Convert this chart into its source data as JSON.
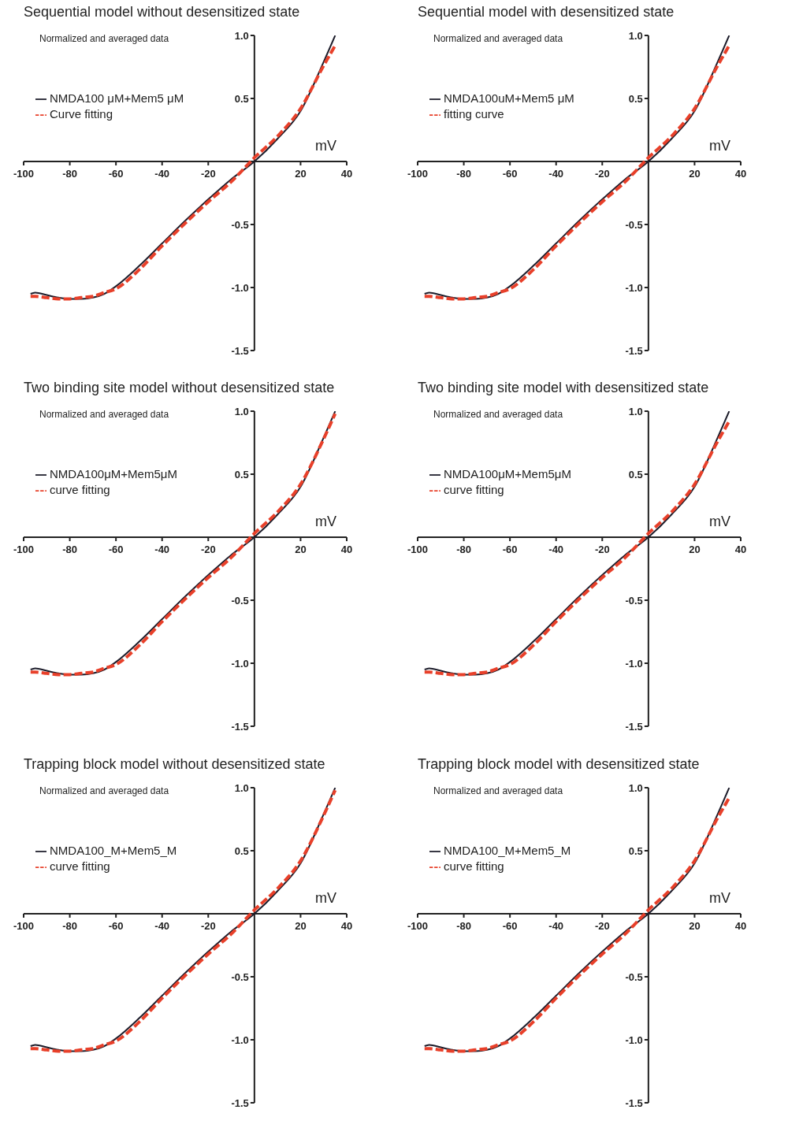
{
  "chart_data": [
    {
      "type": "line",
      "title": "Sequential model without desensitized state",
      "xlabel": "mV",
      "annotations": [
        "Normalized and averaged data"
      ],
      "x": [
        -97,
        -95,
        -90,
        -85,
        -80,
        -75,
        -70,
        -65,
        -60,
        -50,
        -40,
        -30,
        -20,
        -10,
        0,
        10,
        20,
        30,
        35
      ],
      "xlim": [
        -100,
        40
      ],
      "xticks": [
        -100,
        -80,
        -60,
        -40,
        -20,
        20,
        40
      ],
      "ylim": [
        -1.5,
        1.0
      ],
      "yticks": [
        {
          "value": -1.5,
          "label": "-1.5"
        },
        {
          "value": -1.0,
          "label": "-1.0"
        },
        {
          "value": -0.5,
          "label": "-0.5"
        },
        {
          "value": 0.5,
          "label": "0.5"
        },
        {
          "value": 1.0,
          "label": "1.0"
        }
      ],
      "legend": "top left",
      "series": [
        {
          "name": "NMDA100 μM+Mem5 μM",
          "color": "#1c1c2a",
          "line_style": "solid",
          "values": [
            -1.05,
            -1.04,
            -1.06,
            -1.08,
            -1.09,
            -1.09,
            -1.08,
            -1.05,
            -0.99,
            -0.83,
            -0.65,
            -0.47,
            -0.3,
            -0.14,
            0.0,
            0.18,
            0.4,
            0.79,
            1.0
          ]
        },
        {
          "name": "Curve fitting",
          "color": "#e8402a",
          "line_style": "dashed",
          "values": [
            -1.07,
            -1.07,
            -1.08,
            -1.09,
            -1.09,
            -1.08,
            -1.07,
            -1.04,
            -1.01,
            -0.86,
            -0.67,
            -0.49,
            -0.32,
            -0.16,
            0.03,
            0.2,
            0.42,
            0.76,
            0.92
          ]
        }
      ]
    },
    {
      "type": "line",
      "title": "Sequential model with desensitized state",
      "xlabel": "mV",
      "annotations": [
        "Normalized and averaged data"
      ],
      "x": [
        -97,
        -95,
        -90,
        -85,
        -80,
        -75,
        -70,
        -65,
        -60,
        -50,
        -40,
        -30,
        -20,
        -10,
        0,
        10,
        20,
        30,
        35
      ],
      "xlim": [
        -100,
        40
      ],
      "xticks": [
        -100,
        -80,
        -60,
        -40,
        -20,
        20,
        40
      ],
      "ylim": [
        -1.5,
        1.0
      ],
      "yticks": [
        {
          "value": -1.5,
          "label": "-1.5"
        },
        {
          "value": -1.0,
          "label": "-1.0"
        },
        {
          "value": -0.5,
          "label": "-0.5"
        },
        {
          "value": 0.5,
          "label": "0.5"
        },
        {
          "value": 1.0,
          "label": "1.0"
        }
      ],
      "legend": "top left",
      "series": [
        {
          "name": "NMDA100uM+Mem5 μM",
          "color": "#1c1c2a",
          "line_style": "solid",
          "values": [
            -1.05,
            -1.04,
            -1.06,
            -1.08,
            -1.09,
            -1.09,
            -1.08,
            -1.05,
            -0.99,
            -0.83,
            -0.65,
            -0.47,
            -0.3,
            -0.14,
            0.0,
            0.18,
            0.4,
            0.79,
            1.0
          ]
        },
        {
          "name": "fitting curve",
          "color": "#e8402a",
          "line_style": "dashed",
          "values": [
            -1.07,
            -1.07,
            -1.08,
            -1.09,
            -1.09,
            -1.08,
            -1.07,
            -1.04,
            -1.01,
            -0.86,
            -0.67,
            -0.49,
            -0.32,
            -0.16,
            0.03,
            0.2,
            0.42,
            0.76,
            0.92
          ]
        }
      ]
    },
    {
      "type": "line",
      "title": "Two binding site model without desensitized state",
      "xlabel": "mV",
      "annotations": [
        "Normalized and averaged data"
      ],
      "x": [
        -97,
        -95,
        -90,
        -85,
        -80,
        -75,
        -70,
        -65,
        -60,
        -50,
        -40,
        -30,
        -20,
        -10,
        0,
        10,
        20,
        30,
        35
      ],
      "xlim": [
        -100,
        40
      ],
      "xticks": [
        -100,
        -80,
        -60,
        -40,
        -20,
        20,
        40
      ],
      "ylim": [
        -1.5,
        1.0
      ],
      "yticks": [
        {
          "value": -1.5,
          "label": "-1.5"
        },
        {
          "value": -1.0,
          "label": "-1.0"
        },
        {
          "value": -0.5,
          "label": "-0.5"
        },
        {
          "value": 0.5,
          "label": "0.5"
        },
        {
          "value": 1.0,
          "label": "1.0"
        }
      ],
      "legend": "top left",
      "series": [
        {
          "name": "NMDA100μM+Mem5μM",
          "color": "#1c1c2a",
          "line_style": "solid",
          "values": [
            -1.05,
            -1.04,
            -1.06,
            -1.08,
            -1.09,
            -1.09,
            -1.08,
            -1.05,
            -0.99,
            -0.83,
            -0.65,
            -0.47,
            -0.3,
            -0.14,
            0.0,
            0.18,
            0.4,
            0.79,
            1.0
          ]
        },
        {
          "name": "curve fitting",
          "color": "#e8402a",
          "line_style": "dashed",
          "values": [
            -1.07,
            -1.07,
            -1.08,
            -1.09,
            -1.09,
            -1.08,
            -1.07,
            -1.04,
            -1.01,
            -0.86,
            -0.67,
            -0.49,
            -0.32,
            -0.16,
            0.03,
            0.2,
            0.42,
            0.78,
            0.98
          ]
        }
      ]
    },
    {
      "type": "line",
      "title": "Two binding site model with desensitized state",
      "xlabel": "mV",
      "annotations": [
        "Normalized and averaged data"
      ],
      "x": [
        -97,
        -95,
        -90,
        -85,
        -80,
        -75,
        -70,
        -65,
        -60,
        -50,
        -40,
        -30,
        -20,
        -10,
        0,
        10,
        20,
        30,
        35
      ],
      "xlim": [
        -100,
        40
      ],
      "xticks": [
        -100,
        -80,
        -60,
        -40,
        -20,
        20,
        40
      ],
      "ylim": [
        -1.5,
        1.0
      ],
      "yticks": [
        {
          "value": -1.5,
          "label": "-1.5"
        },
        {
          "value": -1.0,
          "label": "-1.0"
        },
        {
          "value": -0.5,
          "label": "-0.5"
        },
        {
          "value": 0.5,
          "label": "0.5"
        },
        {
          "value": 1.0,
          "label": "1.0"
        }
      ],
      "legend": "top left",
      "series": [
        {
          "name": "NMDA100μM+Mem5μM",
          "color": "#1c1c2a",
          "line_style": "solid",
          "values": [
            -1.05,
            -1.04,
            -1.06,
            -1.08,
            -1.09,
            -1.09,
            -1.08,
            -1.05,
            -0.99,
            -0.83,
            -0.65,
            -0.47,
            -0.3,
            -0.14,
            0.0,
            0.18,
            0.4,
            0.79,
            1.0
          ]
        },
        {
          "name": "curve fitting",
          "color": "#e8402a",
          "line_style": "dashed",
          "values": [
            -1.07,
            -1.07,
            -1.08,
            -1.09,
            -1.09,
            -1.08,
            -1.07,
            -1.04,
            -1.01,
            -0.86,
            -0.67,
            -0.49,
            -0.32,
            -0.16,
            0.03,
            0.2,
            0.42,
            0.76,
            0.92
          ]
        }
      ]
    },
    {
      "type": "line",
      "title": "Trapping block model without desensitized state",
      "xlabel": "mV",
      "annotations": [
        "Normalized and averaged data"
      ],
      "x": [
        -97,
        -95,
        -90,
        -85,
        -80,
        -75,
        -70,
        -65,
        -60,
        -50,
        -40,
        -30,
        -20,
        -10,
        0,
        10,
        20,
        30,
        35
      ],
      "xlim": [
        -100,
        40
      ],
      "xticks": [
        -100,
        -80,
        -60,
        -40,
        -20,
        20,
        40
      ],
      "ylim": [
        -1.5,
        1.0
      ],
      "yticks": [
        {
          "value": -1.5,
          "label": "-1.5"
        },
        {
          "value": -1.0,
          "label": "-1.0"
        },
        {
          "value": -0.5,
          "label": "-0.5"
        },
        {
          "value": 0.5,
          "label": "0.5"
        },
        {
          "value": 1.0,
          "label": "1.0"
        }
      ],
      "legend": "top left",
      "series": [
        {
          "name": "NMDA100_M+Mem5_M",
          "color": "#1c1c2a",
          "line_style": "solid",
          "values": [
            -1.05,
            -1.04,
            -1.06,
            -1.08,
            -1.09,
            -1.09,
            -1.08,
            -1.05,
            -0.99,
            -0.83,
            -0.65,
            -0.47,
            -0.3,
            -0.14,
            0.0,
            0.18,
            0.4,
            0.79,
            1.0
          ]
        },
        {
          "name": "curve fitting",
          "color": "#e8402a",
          "line_style": "dashed",
          "values": [
            -1.07,
            -1.07,
            -1.08,
            -1.09,
            -1.09,
            -1.08,
            -1.07,
            -1.04,
            -1.01,
            -0.86,
            -0.67,
            -0.49,
            -0.32,
            -0.16,
            0.03,
            0.2,
            0.42,
            0.78,
            0.98
          ]
        }
      ]
    },
    {
      "type": "line",
      "title": "Trapping block model with desensitized state",
      "xlabel": "mV",
      "annotations": [
        "Normalized and averaged data"
      ],
      "x": [
        -97,
        -95,
        -90,
        -85,
        -80,
        -75,
        -70,
        -65,
        -60,
        -50,
        -40,
        -30,
        -20,
        -10,
        0,
        10,
        20,
        30,
        35
      ],
      "xlim": [
        -100,
        40
      ],
      "xticks": [
        -100,
        -80,
        -60,
        -40,
        -20,
        20,
        40
      ],
      "ylim": [
        -1.5,
        1.0
      ],
      "yticks": [
        {
          "value": -1.5,
          "label": "-1.5"
        },
        {
          "value": -1.0,
          "label": "-1.0"
        },
        {
          "value": -0.5,
          "label": "-0.5"
        },
        {
          "value": 0.5,
          "label": "0.5"
        },
        {
          "value": 1.0,
          "label": "1.0"
        }
      ],
      "legend": "top left",
      "series": [
        {
          "name": "NMDA100_M+Mem5_M",
          "color": "#1c1c2a",
          "line_style": "solid",
          "values": [
            -1.05,
            -1.04,
            -1.06,
            -1.08,
            -1.09,
            -1.09,
            -1.08,
            -1.05,
            -0.99,
            -0.83,
            -0.65,
            -0.47,
            -0.3,
            -0.14,
            0.0,
            0.18,
            0.4,
            0.79,
            1.0
          ]
        },
        {
          "name": "curve fitting",
          "color": "#e8402a",
          "line_style": "dashed",
          "values": [
            -1.07,
            -1.07,
            -1.08,
            -1.09,
            -1.09,
            -1.08,
            -1.07,
            -1.04,
            -1.01,
            -0.86,
            -0.67,
            -0.49,
            -0.32,
            -0.16,
            0.03,
            0.2,
            0.42,
            0.76,
            0.92
          ]
        }
      ]
    }
  ]
}
